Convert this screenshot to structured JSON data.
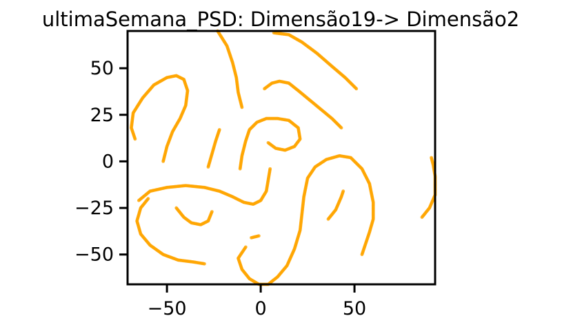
{
  "chart_data": {
    "type": "scatter",
    "title": "ultimaSemana_PSD: Dimensão19-> Dimensão2",
    "xlabel": "",
    "ylabel": "",
    "xlim": [
      -71,
      93
    ],
    "ylim": [
      -66,
      70
    ],
    "x_ticks": [
      {
        "value": -50,
        "label": "−50"
      },
      {
        "value": 0,
        "label": "0"
      },
      {
        "value": 50,
        "label": "50"
      }
    ],
    "y_ticks": [
      {
        "value": 50,
        "label": "50"
      },
      {
        "value": 25,
        "label": "25"
      },
      {
        "value": 0,
        "label": "0"
      },
      {
        "value": -25,
        "label": "−25"
      },
      {
        "value": -50,
        "label": "−50"
      }
    ],
    "grid": false,
    "legend": "none",
    "point_color": "#FFA500",
    "series": [
      {
        "points": [
          [
            -67,
            12
          ],
          [
            -69,
            18
          ],
          [
            -68,
            26
          ],
          [
            -63,
            34
          ],
          [
            -57,
            41
          ],
          [
            -50,
            45
          ],
          [
            -45,
            46
          ],
          [
            -41,
            44
          ],
          [
            -39,
            38
          ],
          [
            -40,
            30
          ],
          [
            -43,
            23
          ],
          [
            -47,
            16
          ],
          [
            -50,
            8
          ],
          [
            -52,
            0
          ]
        ]
      },
      {
        "points": [
          [
            -22,
            17
          ],
          [
            -24,
            11
          ],
          [
            -26,
            4
          ],
          [
            -28,
            -3
          ]
        ]
      },
      {
        "points": [
          [
            -23,
            70
          ],
          [
            -18,
            62
          ],
          [
            -15,
            53
          ],
          [
            -13,
            45
          ],
          [
            -12,
            37
          ],
          [
            -10,
            29
          ]
        ]
      },
      {
        "points": [
          [
            -11,
            -4
          ],
          [
            -10,
            3
          ],
          [
            -8,
            11
          ],
          [
            -6,
            17
          ],
          [
            -2,
            21
          ],
          [
            3,
            23
          ],
          [
            9,
            23
          ],
          [
            15,
            22
          ],
          [
            20,
            18
          ],
          [
            21,
            12
          ],
          [
            18,
            8
          ],
          [
            13,
            6
          ],
          [
            8,
            7
          ],
          [
            4,
            10
          ]
        ]
      },
      {
        "points": [
          [
            2,
            39
          ],
          [
            6,
            42
          ],
          [
            10,
            43
          ],
          [
            15,
            42
          ],
          [
            20,
            38
          ],
          [
            26,
            33
          ],
          [
            32,
            28
          ],
          [
            38,
            23
          ],
          [
            43,
            18
          ]
        ]
      },
      {
        "points": [
          [
            7,
            69
          ],
          [
            15,
            68
          ],
          [
            22,
            64
          ],
          [
            30,
            58
          ],
          [
            38,
            51
          ],
          [
            45,
            45
          ],
          [
            51,
            39
          ]
        ]
      },
      {
        "points": [
          [
            -65,
            -21
          ],
          [
            -59,
            -16
          ],
          [
            -50,
            -14
          ],
          [
            -40,
            -13
          ],
          [
            -30,
            -14
          ],
          [
            -22,
            -16
          ],
          [
            -15,
            -19
          ],
          [
            -9,
            -22
          ],
          [
            -4,
            -23
          ],
          [
            0,
            -21
          ],
          [
            3,
            -16
          ],
          [
            4,
            -10
          ],
          [
            5,
            -4
          ]
        ]
      },
      {
        "points": [
          [
            -60,
            -20
          ],
          [
            -64,
            -25
          ],
          [
            -66,
            -32
          ],
          [
            -64,
            -39
          ],
          [
            -59,
            -45
          ],
          [
            -52,
            -50
          ],
          [
            -44,
            -53
          ],
          [
            -36,
            -54
          ],
          [
            -30,
            -55
          ]
        ]
      },
      {
        "points": [
          [
            -45,
            -25
          ],
          [
            -41,
            -30
          ],
          [
            -37,
            -33
          ],
          [
            -32,
            -34
          ],
          [
            -28,
            -32
          ],
          [
            -26,
            -27
          ]
        ]
      },
      {
        "points": [
          [
            -8,
            -46
          ],
          [
            -12,
            -52
          ],
          [
            -10,
            -58
          ],
          [
            -6,
            -63
          ],
          [
            -1,
            -66
          ],
          [
            4,
            -66
          ],
          [
            9,
            -62
          ],
          [
            14,
            -56
          ],
          [
            18,
            -47
          ],
          [
            21,
            -37
          ],
          [
            22,
            -28
          ],
          [
            23,
            -19
          ],
          [
            25,
            -9
          ],
          [
            29,
            -3
          ],
          [
            35,
            1
          ],
          [
            42,
            3
          ],
          [
            48,
            2
          ],
          [
            54,
            -4
          ],
          [
            58,
            -12
          ],
          [
            60,
            -22
          ],
          [
            60,
            -31
          ],
          [
            58,
            -38
          ],
          [
            56,
            -44
          ],
          [
            54,
            -50
          ]
        ]
      },
      {
        "points": [
          [
            -5,
            -41
          ],
          [
            -1,
            -40
          ]
        ]
      },
      {
        "points": [
          [
            36,
            -31
          ],
          [
            40,
            -26
          ],
          [
            43,
            -19
          ],
          [
            44,
            -16
          ]
        ]
      },
      {
        "points": [
          [
            86,
            -30
          ],
          [
            90,
            -25
          ],
          [
            93,
            -18
          ],
          [
            93,
            -8
          ],
          [
            92,
            -2
          ],
          [
            91,
            2
          ]
        ]
      }
    ]
  }
}
